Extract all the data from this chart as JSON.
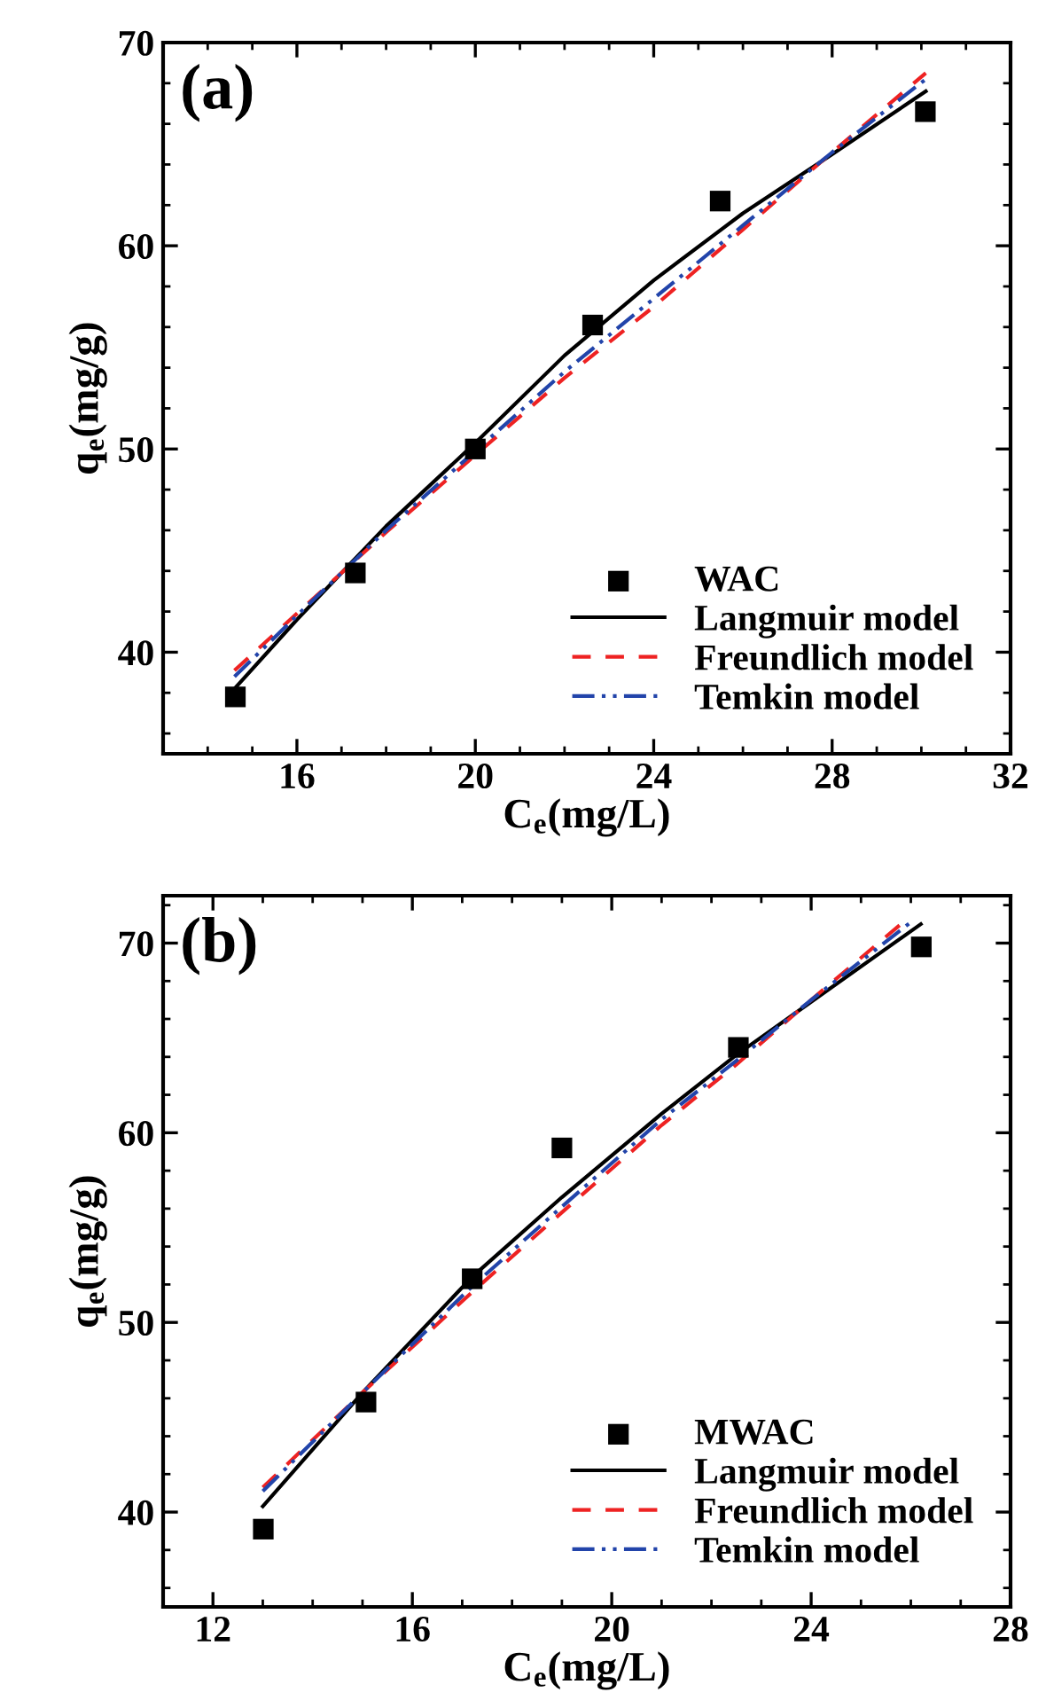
{
  "chart_data": [
    {
      "type": "scatter",
      "xlabel": "C$_{e}$(mg/L)",
      "ylabel": "q$_{e}$(mg/g)",
      "annotations": [
        "(a)"
      ],
      "xlim": [
        13,
        32
      ],
      "xticks": [
        16,
        20,
        24,
        28,
        32
      ],
      "ylim": [
        35,
        70
      ],
      "yticks": [
        40,
        50,
        60,
        70
      ],
      "grid": false,
      "legend": "lower right",
      "series": [
        {
          "name": "WAC",
          "marker": "square",
          "color": "#000000",
          "x": [
            14.62,
            17.31,
            20.0,
            22.63,
            25.49,
            30.09
          ],
          "values": [
            37.8,
            43.9,
            50.0,
            56.1,
            62.2,
            66.6
          ]
        },
        {
          "name": "Langmuir model",
          "type": "line",
          "line_style": "solid",
          "color": "#000000",
          "x": [
            14.6,
            16,
            18,
            20,
            22,
            24,
            26,
            28,
            30.1
          ],
          "values": [
            38.2,
            41.6,
            46.2,
            50.3,
            54.6,
            58.3,
            61.6,
            64.5,
            67.6
          ]
        },
        {
          "name": "Freundlich model",
          "type": "line",
          "line_style": "dashed",
          "color": "#ee2222",
          "x": [
            14.6,
            16,
            18,
            20,
            22,
            24,
            26,
            28,
            30.1
          ],
          "values": [
            39.1,
            41.9,
            45.9,
            49.7,
            53.5,
            57.0,
            60.8,
            64.6,
            68.5
          ]
        },
        {
          "name": "Temkin model",
          "type": "line",
          "line_style": "dashdot",
          "color": "#2244aa",
          "x": [
            14.6,
            16,
            18,
            20,
            22,
            24,
            26,
            28,
            30.1
          ],
          "values": [
            38.8,
            41.8,
            46.0,
            49.9,
            53.8,
            57.4,
            61.0,
            64.6,
            68.2
          ]
        }
      ]
    },
    {
      "type": "scatter",
      "xlabel": "C$_{e}$(mg/L)",
      "ylabel": "q$_{e}$(mg/g)",
      "annotations": [
        "(b)"
      ],
      "xlim": [
        11,
        28
      ],
      "xticks": [
        12,
        16,
        20,
        24,
        28
      ],
      "ylim": [
        35,
        72.5
      ],
      "yticks": [
        40,
        50,
        60,
        70
      ],
      "grid": false,
      "legend": "lower right",
      "series": [
        {
          "name": "MWAC",
          "marker": "square",
          "color": "#000000",
          "x": [
            13.01,
            15.07,
            17.2,
            19.0,
            22.54,
            26.21
          ],
          "values": [
            39.1,
            45.8,
            52.3,
            59.2,
            64.5,
            69.8
          ]
        },
        {
          "name": "Langmuir model",
          "type": "line",
          "line_style": "solid",
          "color": "#000000",
          "x": [
            13,
            15,
            17.2,
            19,
            21,
            22.5,
            24,
            26.2
          ],
          "values": [
            40.3,
            46.3,
            52.4,
            56.6,
            61.0,
            64.1,
            66.9,
            71.0
          ]
        },
        {
          "name": "Freundlich model",
          "type": "line",
          "line_style": "dashed",
          "color": "#ee2222",
          "x": [
            13,
            15,
            17.2,
            19,
            21,
            22.5,
            24,
            25.8
          ],
          "values": [
            41.3,
            46.3,
            51.6,
            55.8,
            60.4,
            63.6,
            67.0,
            71.0
          ]
        },
        {
          "name": "Temkin model",
          "type": "line",
          "line_style": "dashdot",
          "color": "#2244aa",
          "x": [
            13,
            15,
            17.2,
            19,
            21,
            22.5,
            24,
            26.0
          ],
          "values": [
            41.1,
            46.3,
            51.9,
            56.1,
            60.7,
            63.8,
            67.0,
            71.1
          ]
        }
      ]
    }
  ]
}
